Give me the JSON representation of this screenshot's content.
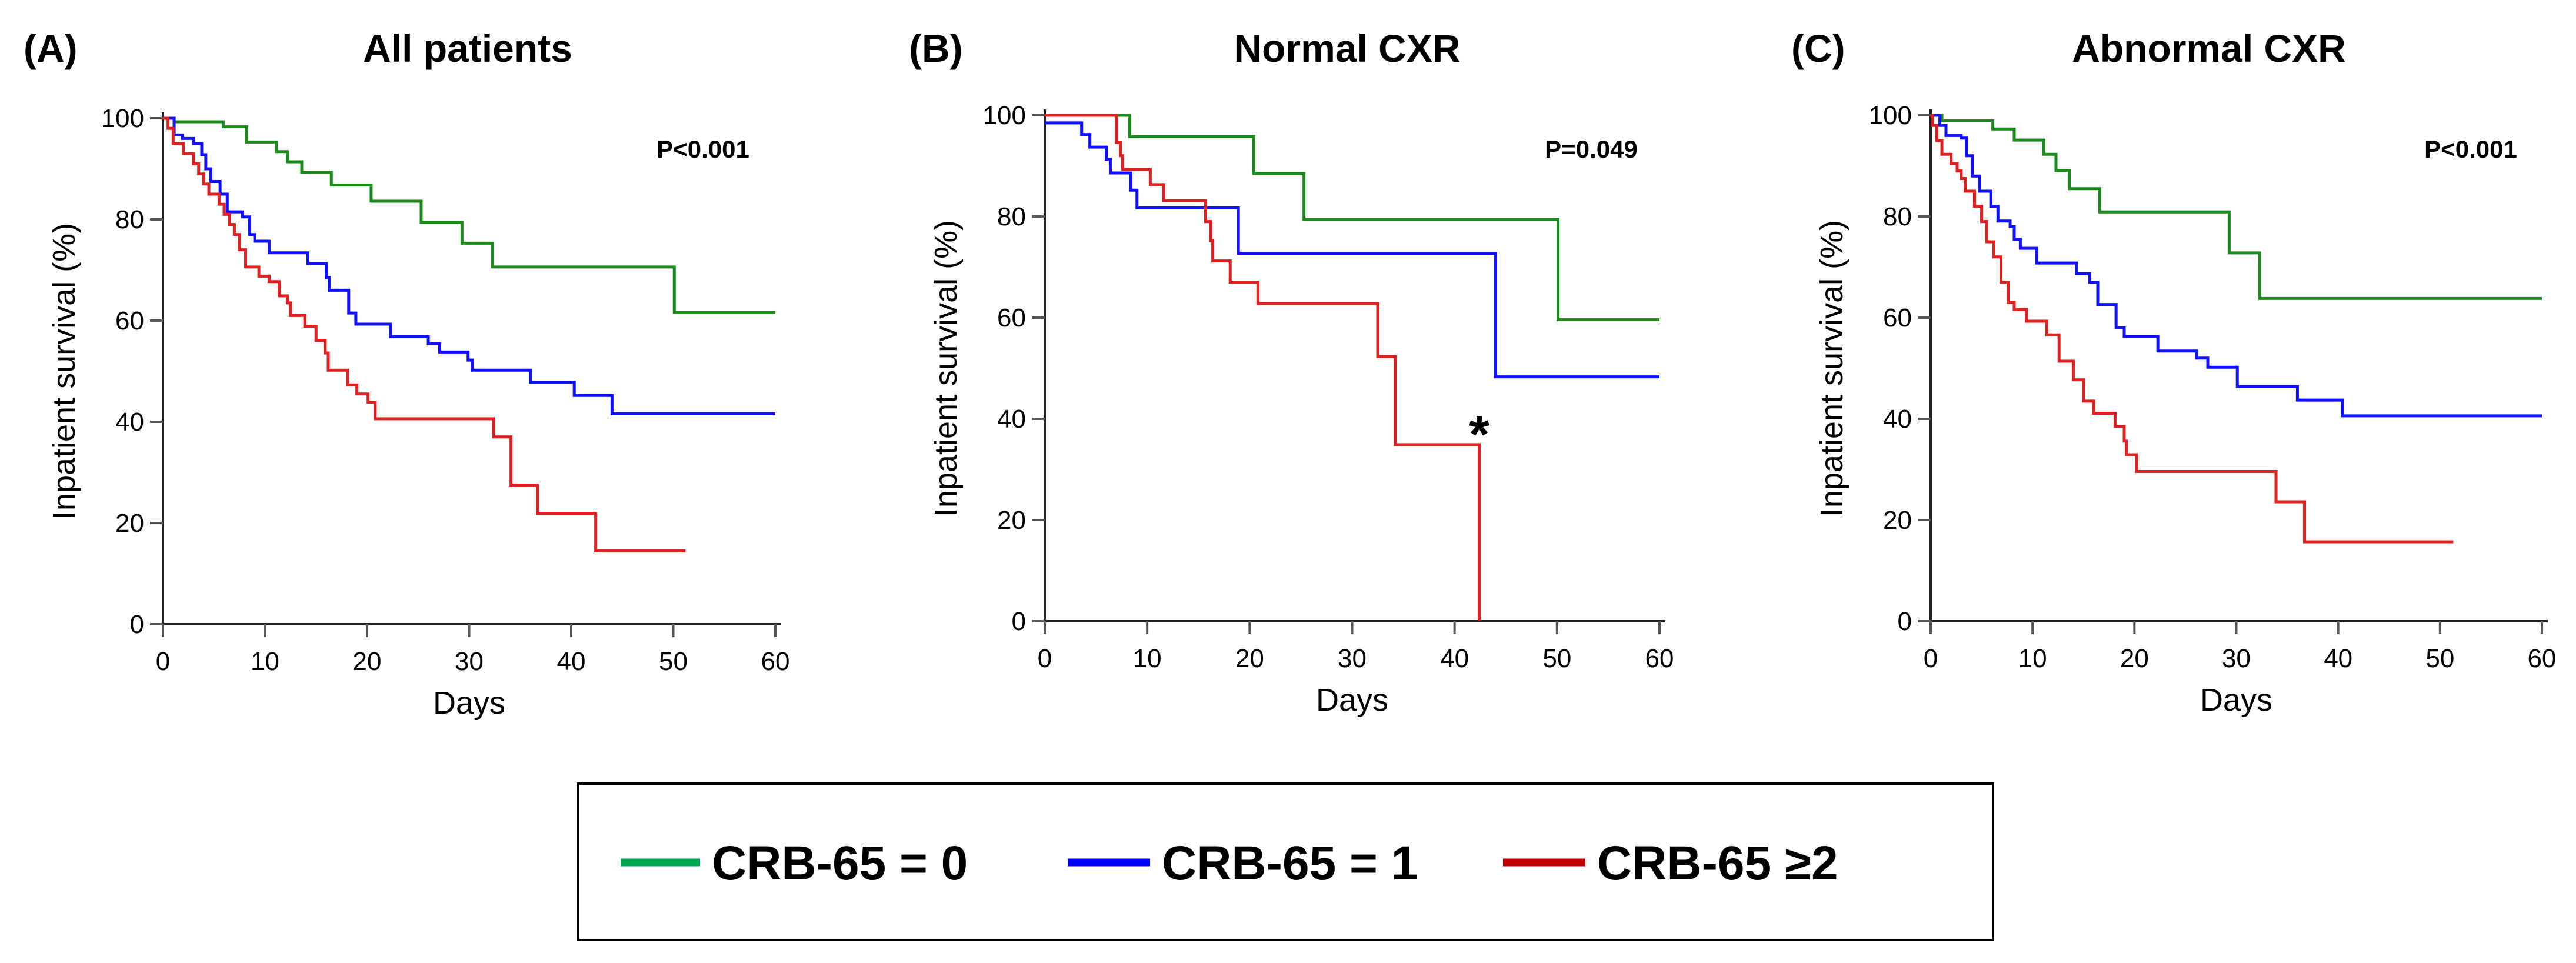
{
  "chart_data": [
    {
      "type": "line",
      "panel_label": "(A)",
      "title": "All patients",
      "xlabel": "Days",
      "ylabel": "Inpatient survival (%)",
      "xlim": [
        0,
        60
      ],
      "ylim": [
        0,
        100
      ],
      "xticks": [
        "0",
        "10",
        "20",
        "30",
        "40",
        "50",
        "60"
      ],
      "yticks": [
        "0",
        "20",
        "40",
        "60",
        "80",
        "100"
      ],
      "annotation": "P<0.001",
      "series": [
        {
          "name": "CRB-65 = 0",
          "end": 60,
          "steps": [
            [
              0,
              100
            ],
            [
              1.1,
              99.3
            ],
            [
              5.9,
              98.3
            ],
            [
              8.2,
              95.3
            ],
            [
              11.1,
              93.4
            ],
            [
              12.2,
              91.4
            ],
            [
              13.6,
              89.3
            ],
            [
              16.5,
              86.8
            ],
            [
              20.4,
              83.6
            ],
            [
              25.3,
              79.4
            ],
            [
              29.3,
              75.3
            ],
            [
              32.3,
              70.6
            ],
            [
              50.1,
              61.6
            ]
          ]
        },
        {
          "name": "CRB-65 = 1",
          "end": 60,
          "steps": [
            [
              0,
              100
            ],
            [
              1.1,
              96.7
            ],
            [
              1.9,
              96
            ],
            [
              3,
              95
            ],
            [
              3.8,
              92.8
            ],
            [
              4.2,
              90
            ],
            [
              4.7,
              87.5
            ],
            [
              5.6,
              85
            ],
            [
              6.3,
              81.5
            ],
            [
              7.8,
              80.5
            ],
            [
              8.5,
              77
            ],
            [
              9,
              75.7
            ],
            [
              10.4,
              73.4
            ],
            [
              14.2,
              71.3
            ],
            [
              16,
              68.5
            ],
            [
              16.3,
              66
            ],
            [
              18.2,
              61.5
            ],
            [
              18.9,
              59.3
            ],
            [
              22.3,
              56.8
            ],
            [
              26,
              55.4
            ],
            [
              27.1,
              53.8
            ],
            [
              29.9,
              52.2
            ],
            [
              30.3,
              50.2
            ],
            [
              36,
              47.8
            ],
            [
              40.3,
              45.2
            ],
            [
              44,
              41.6
            ]
          ]
        },
        {
          "name": "CRB-65 ≥2",
          "end": 51.2,
          "steps": [
            [
              0,
              100
            ],
            [
              0.5,
              98
            ],
            [
              1,
              95
            ],
            [
              2,
              93
            ],
            [
              3,
              91
            ],
            [
              3.5,
              89
            ],
            [
              4,
              87
            ],
            [
              4.5,
              85
            ],
            [
              5.5,
              83
            ],
            [
              6,
              81
            ],
            [
              6.5,
              79
            ],
            [
              7,
              77
            ],
            [
              7.5,
              74
            ],
            [
              8.1,
              70.6
            ],
            [
              9.4,
              68.8
            ],
            [
              10.4,
              67.7
            ],
            [
              11.4,
              64.9
            ],
            [
              12.2,
              63.5
            ],
            [
              12.5,
              61
            ],
            [
              13.9,
              58.9
            ],
            [
              15,
              56.1
            ],
            [
              15.9,
              53.6
            ],
            [
              16.2,
              50.2
            ],
            [
              18.1,
              47.3
            ],
            [
              19,
              45.5
            ],
            [
              20.1,
              43.9
            ],
            [
              20.8,
              40.6
            ],
            [
              32.4,
              37
            ],
            [
              34.1,
              27.5
            ],
            [
              36.7,
              21.9
            ],
            [
              42.4,
              14.5
            ]
          ]
        }
      ]
    },
    {
      "type": "line",
      "panel_label": "(B)",
      "title": "Normal CXR",
      "xlabel": "Days",
      "ylabel": "Inpatient survival (%)",
      "xlim": [
        0,
        60
      ],
      "ylim": [
        0,
        100
      ],
      "xticks": [
        "0",
        "10",
        "20",
        "30",
        "40",
        "50",
        "60"
      ],
      "yticks": [
        "0",
        "20",
        "40",
        "60",
        "80",
        "100"
      ],
      "annotation": "P=0.049",
      "marker_annotation": {
        "text": "*",
        "x": 42.4,
        "y": 38
      },
      "series": [
        {
          "name": "CRB-65 = 0",
          "end": 60,
          "steps": [
            [
              0,
              100
            ],
            [
              8.3,
              95.8
            ],
            [
              20.4,
              88.5
            ],
            [
              25.3,
              79.4
            ],
            [
              50.1,
              59.6
            ]
          ]
        },
        {
          "name": "CRB-65 = 1",
          "end": 60,
          "steps": [
            [
              0,
              98.5
            ],
            [
              3.6,
              96.2
            ],
            [
              4.4,
              93.7
            ],
            [
              6,
              91.3
            ],
            [
              6.4,
              88.6
            ],
            [
              8.4,
              85.2
            ],
            [
              9,
              81.7
            ],
            [
              18.9,
              72.7
            ],
            [
              44,
              48.3
            ]
          ]
        },
        {
          "name": "CRB-65 ≥2",
          "end": 42.4,
          "steps": [
            [
              0,
              100
            ],
            [
              7,
              94.6
            ],
            [
              7.4,
              92
            ],
            [
              7.6,
              89.3
            ],
            [
              10.3,
              86.3
            ],
            [
              11.6,
              83.1
            ],
            [
              15.7,
              79
            ],
            [
              16.2,
              75.2
            ],
            [
              16.4,
              71.2
            ],
            [
              18.1,
              67
            ],
            [
              20.8,
              62.8
            ],
            [
              32.5,
              52.3
            ],
            [
              34.2,
              34.9
            ],
            [
              42.4,
              0
            ]
          ]
        }
      ]
    },
    {
      "type": "line",
      "panel_label": "(C)",
      "title": "Abnormal CXR",
      "xlabel": "Days",
      "ylabel": "Inpatient survival (%)",
      "xlim": [
        0,
        60
      ],
      "ylim": [
        0,
        100
      ],
      "xticks": [
        "0",
        "10",
        "20",
        "30",
        "40",
        "50",
        "60"
      ],
      "yticks": [
        "0",
        "20",
        "40",
        "60",
        "80",
        "100"
      ],
      "annotation": "P<0.001",
      "series": [
        {
          "name": "CRB-65 = 0",
          "end": 60,
          "steps": [
            [
              0,
              100
            ],
            [
              1.1,
              98.9
            ],
            [
              6.1,
              97.3
            ],
            [
              8.2,
              95.1
            ],
            [
              11.1,
              92.3
            ],
            [
              12.3,
              89.1
            ],
            [
              13.6,
              85.5
            ],
            [
              16.6,
              80.9
            ],
            [
              29.3,
              72.8
            ],
            [
              32.3,
              63.8
            ]
          ]
        },
        {
          "name": "CRB-65 = 1",
          "end": 60,
          "steps": [
            [
              0,
              100
            ],
            [
              0.9,
              98
            ],
            [
              1.5,
              96
            ],
            [
              3,
              95.5
            ],
            [
              3.5,
              92
            ],
            [
              4.1,
              88
            ],
            [
              4.8,
              85
            ],
            [
              5.9,
              82
            ],
            [
              6.6,
              79.1
            ],
            [
              7.8,
              78
            ],
            [
              8.2,
              75.5
            ],
            [
              8.8,
              73.7
            ],
            [
              10.4,
              70.8
            ],
            [
              14.3,
              68.7
            ],
            [
              15.6,
              67
            ],
            [
              16.4,
              62.6
            ],
            [
              18.2,
              58
            ],
            [
              19,
              56.3
            ],
            [
              22.3,
              53.4
            ],
            [
              26.1,
              52
            ],
            [
              27.2,
              50.2
            ],
            [
              30.1,
              46.4
            ],
            [
              36,
              43.7
            ],
            [
              40.4,
              40.6
            ]
          ]
        },
        {
          "name": "CRB-65 ≥2",
          "end": 51.3,
          "steps": [
            [
              0,
              100
            ],
            [
              0.2,
              98
            ],
            [
              0.6,
              95
            ],
            [
              1.1,
              92.3
            ],
            [
              2,
              90.5
            ],
            [
              2.6,
              89
            ],
            [
              3,
              87.5
            ],
            [
              3.4,
              85
            ],
            [
              4.3,
              82
            ],
            [
              5,
              79
            ],
            [
              5.5,
              75
            ],
            [
              6.2,
              72
            ],
            [
              6.9,
              67
            ],
            [
              7.6,
              63
            ],
            [
              8.2,
              61.6
            ],
            [
              9.4,
              59.3
            ],
            [
              11.4,
              56.6
            ],
            [
              12.6,
              51.4
            ],
            [
              14,
              47.7
            ],
            [
              15,
              43.5
            ],
            [
              16,
              41.1
            ],
            [
              18.1,
              38.5
            ],
            [
              19,
              35.6
            ],
            [
              19.2,
              32.9
            ],
            [
              20.2,
              29.6
            ],
            [
              33.9,
              23.6
            ],
            [
              36.7,
              15.7
            ]
          ]
        }
      ]
    }
  ],
  "legend": {
    "items": [
      {
        "label": "CRB-65 = 0",
        "color": "#00a651"
      },
      {
        "label": "CRB-65 = 1",
        "color": "#0000ff"
      },
      {
        "label": "CRB-65 ≥2",
        "color": "#c00000"
      }
    ]
  },
  "colors": {
    "series": [
      "#1a8a1a",
      "#1010ff",
      "#e02020"
    ]
  }
}
